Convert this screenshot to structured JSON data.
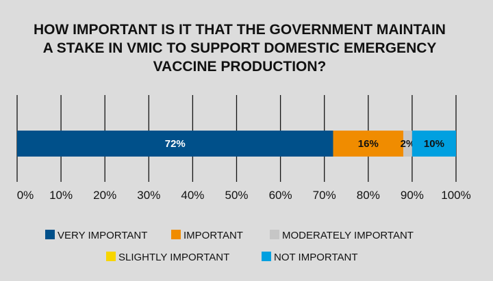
{
  "chart_data": {
    "type": "bar",
    "orientation": "horizontal",
    "stacked": true,
    "title": "HOW IMPORTANT IS IT THAT THE GOVERNMENT MAINTAIN A STAKE IN VMIC TO SUPPORT DOMESTIC EMERGENCY VACCINE PRODUCTION?",
    "x_ticks": [
      "0%",
      "10%",
      "20%",
      "30%",
      "40%",
      "50%",
      "60%",
      "70%",
      "80%",
      "90%",
      "100%"
    ],
    "xlim": [
      0,
      100
    ],
    "grid": true,
    "legend_position": "bottom",
    "series": [
      {
        "name": "VERY IMPORTANT",
        "value": 72,
        "label": "72%",
        "color": "#00508a"
      },
      {
        "name": "IMPORTANT",
        "value": 16,
        "label": "16%",
        "color": "#f08c00"
      },
      {
        "name": "MODERATELY IMPORTANT",
        "value": 2,
        "label": "2%",
        "color": "#c6c6c6"
      },
      {
        "name": "SLIGHTLY IMPORTANT",
        "value": 0,
        "label": "",
        "color": "#f7d500"
      },
      {
        "name": "NOT IMPORTANT",
        "value": 10,
        "label": "10%",
        "color": "#00a0e0"
      }
    ]
  }
}
